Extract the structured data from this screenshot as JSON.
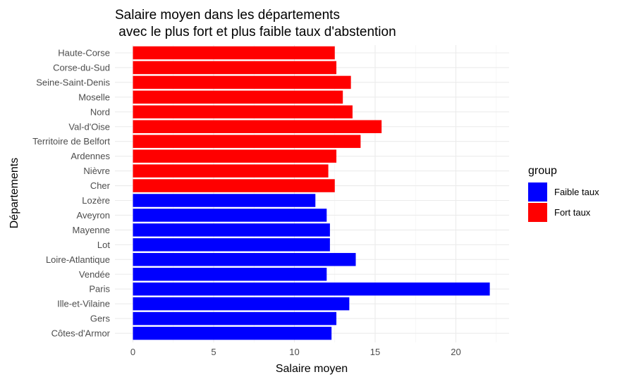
{
  "chart_data": {
    "type": "bar",
    "orientation": "horizontal",
    "title": "Salaire moyen dans les départements\n avec le plus fort et plus faible taux d'abstention",
    "title_lines": [
      "Salaire moyen dans les départements",
      " avec le plus fort et plus faible taux d'abstention"
    ],
    "xlabel": "Salaire moyen",
    "ylabel": "Départements",
    "xlim": [
      0,
      22.5
    ],
    "x_ticks": [
      0,
      5,
      10,
      15,
      20
    ],
    "grid": true,
    "legend_position": "right",
    "legend_title": "group",
    "groups": [
      {
        "name": "Faible taux",
        "color": "#0000FF"
      },
      {
        "name": "Fort taux",
        "color": "#FF0000"
      }
    ],
    "categories": [
      "Haute-Corse",
      "Corse-du-Sud",
      "Seine-Saint-Denis",
      "Moselle",
      "Nord",
      "Val-d'Oise",
      "Territoire de Belfort",
      "Ardennes",
      "Nièvre",
      "Cher",
      "Lozère",
      "Aveyron",
      "Mayenne",
      "Lot",
      "Loire-Atlantique",
      "Vendée",
      "Paris",
      "Ille-et-Vilaine",
      "Gers",
      "Côtes-d'Armor"
    ],
    "values": [
      12.5,
      12.6,
      13.5,
      13.0,
      13.6,
      15.4,
      14.1,
      12.6,
      12.1,
      12.5,
      11.3,
      12.0,
      12.2,
      12.2,
      13.8,
      12.0,
      22.1,
      13.4,
      12.6,
      12.3
    ],
    "group_of": [
      "Fort taux",
      "Fort taux",
      "Fort taux",
      "Fort taux",
      "Fort taux",
      "Fort taux",
      "Fort taux",
      "Fort taux",
      "Fort taux",
      "Fort taux",
      "Faible taux",
      "Faible taux",
      "Faible taux",
      "Faible taux",
      "Faible taux",
      "Faible taux",
      "Faible taux",
      "Faible taux",
      "Faible taux",
      "Faible taux"
    ]
  }
}
